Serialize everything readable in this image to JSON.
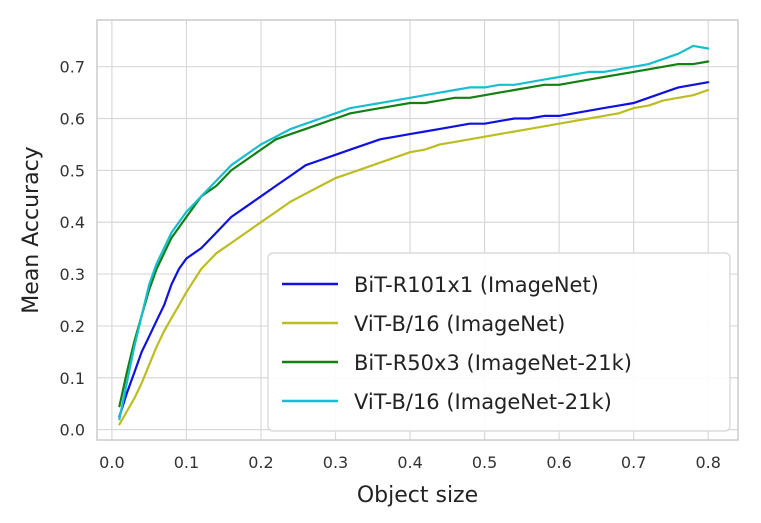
{
  "chart_data": {
    "type": "line",
    "title": "",
    "xlabel": "Object size",
    "ylabel": "Mean Accuracy",
    "xlim": [
      -0.02,
      0.84
    ],
    "ylim": [
      -0.02,
      0.79
    ],
    "xticks": [
      0.0,
      0.1,
      0.2,
      0.3,
      0.4,
      0.5,
      0.6,
      0.7,
      0.8
    ],
    "yticks": [
      0.0,
      0.1,
      0.2,
      0.3,
      0.4,
      0.5,
      0.6,
      0.7
    ],
    "grid": true,
    "legend_position": "lower-right",
    "x": [
      0.01,
      0.02,
      0.03,
      0.04,
      0.05,
      0.06,
      0.07,
      0.08,
      0.09,
      0.1,
      0.12,
      0.14,
      0.16,
      0.18,
      0.2,
      0.22,
      0.24,
      0.26,
      0.28,
      0.3,
      0.32,
      0.34,
      0.36,
      0.38,
      0.4,
      0.42,
      0.44,
      0.46,
      0.48,
      0.5,
      0.52,
      0.54,
      0.56,
      0.58,
      0.6,
      0.62,
      0.64,
      0.66,
      0.68,
      0.7,
      0.72,
      0.74,
      0.76,
      0.78,
      0.8
    ],
    "series": [
      {
        "name": "BiT-R101x1 (ImageNet)",
        "color": "#1010e0",
        "values": [
          0.025,
          0.07,
          0.11,
          0.15,
          0.18,
          0.21,
          0.24,
          0.28,
          0.31,
          0.33,
          0.35,
          0.38,
          0.41,
          0.43,
          0.45,
          0.47,
          0.49,
          0.51,
          0.52,
          0.53,
          0.54,
          0.55,
          0.56,
          0.565,
          0.57,
          0.575,
          0.58,
          0.585,
          0.59,
          0.59,
          0.595,
          0.6,
          0.6,
          0.605,
          0.605,
          0.61,
          0.615,
          0.62,
          0.625,
          0.63,
          0.64,
          0.65,
          0.66,
          0.665,
          0.67
        ]
      },
      {
        "name": "ViT-B/16 (ImageNet)",
        "color": "#bcbd22",
        "values": [
          0.01,
          0.035,
          0.06,
          0.09,
          0.125,
          0.16,
          0.19,
          0.215,
          0.24,
          0.265,
          0.31,
          0.34,
          0.36,
          0.38,
          0.4,
          0.42,
          0.44,
          0.455,
          0.47,
          0.485,
          0.495,
          0.505,
          0.515,
          0.525,
          0.535,
          0.54,
          0.55,
          0.555,
          0.56,
          0.565,
          0.57,
          0.575,
          0.58,
          0.585,
          0.59,
          0.595,
          0.6,
          0.605,
          0.61,
          0.62,
          0.625,
          0.635,
          0.64,
          0.645,
          0.655
        ]
      },
      {
        "name": "BiT-R50x3 (ImageNet-21k)",
        "color": "#128012",
        "values": [
          0.045,
          0.11,
          0.17,
          0.22,
          0.27,
          0.31,
          0.34,
          0.37,
          0.39,
          0.41,
          0.45,
          0.47,
          0.5,
          0.52,
          0.54,
          0.56,
          0.57,
          0.58,
          0.59,
          0.6,
          0.61,
          0.615,
          0.62,
          0.625,
          0.63,
          0.63,
          0.635,
          0.64,
          0.64,
          0.645,
          0.65,
          0.655,
          0.66,
          0.665,
          0.665,
          0.67,
          0.675,
          0.68,
          0.685,
          0.69,
          0.695,
          0.7,
          0.705,
          0.705,
          0.71
        ]
      },
      {
        "name": "ViT-B/16 (ImageNet-21k)",
        "color": "#17becf",
        "values": [
          0.02,
          0.09,
          0.16,
          0.22,
          0.28,
          0.32,
          0.35,
          0.38,
          0.4,
          0.42,
          0.45,
          0.48,
          0.51,
          0.53,
          0.55,
          0.565,
          0.58,
          0.59,
          0.6,
          0.61,
          0.62,
          0.625,
          0.63,
          0.635,
          0.64,
          0.645,
          0.65,
          0.655,
          0.66,
          0.66,
          0.665,
          0.665,
          0.67,
          0.675,
          0.68,
          0.685,
          0.69,
          0.69,
          0.695,
          0.7,
          0.705,
          0.715,
          0.725,
          0.74,
          0.735
        ]
      }
    ]
  }
}
